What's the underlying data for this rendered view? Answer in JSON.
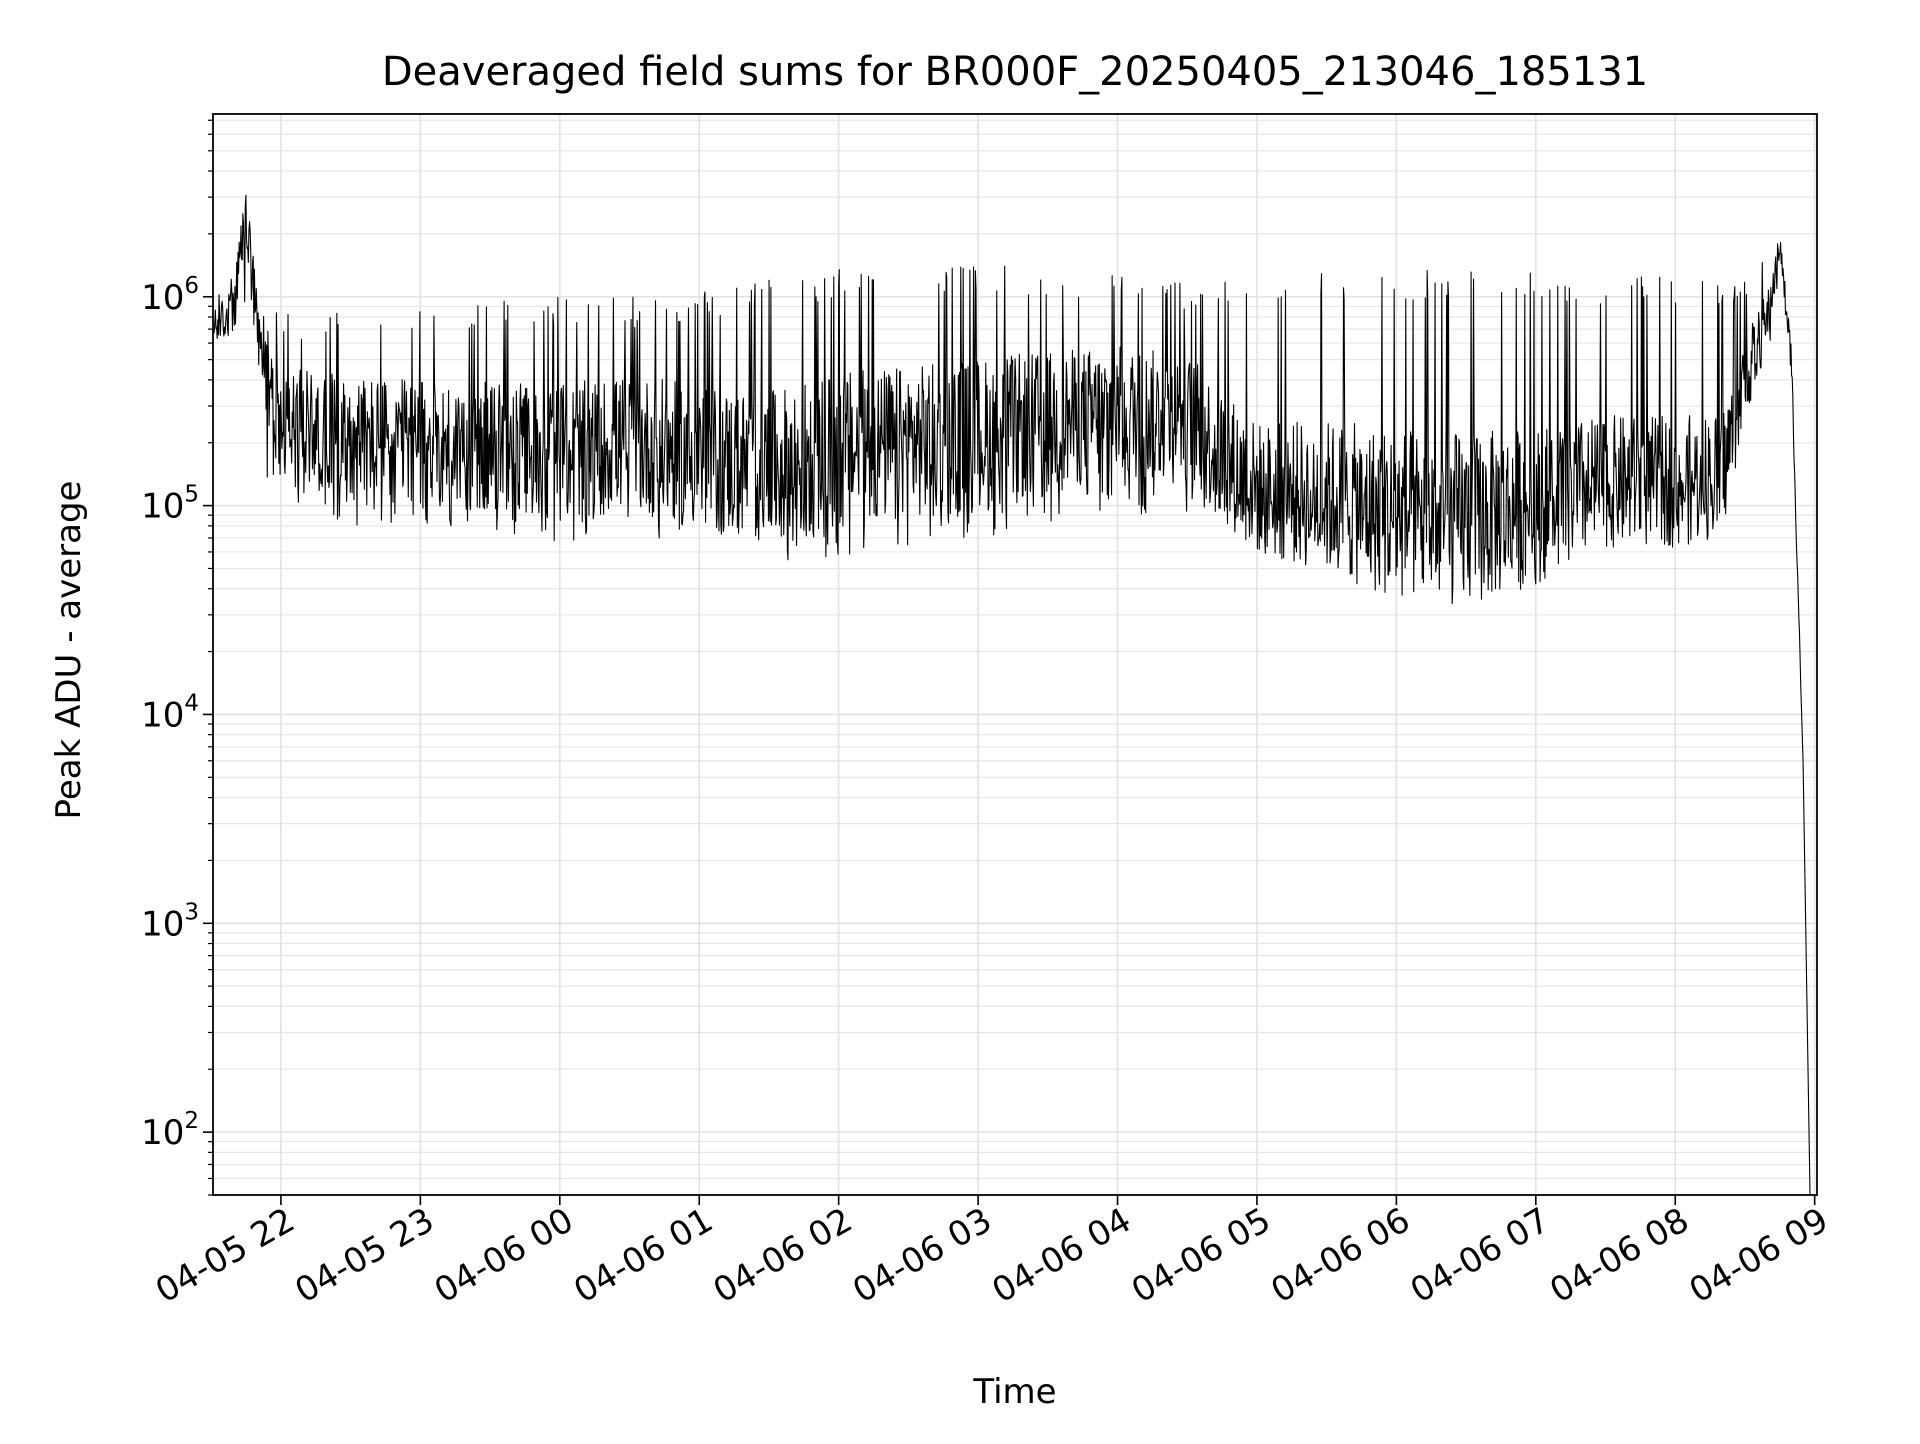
{
  "chart_data": {
    "type": "line",
    "title": "Deaveraged field sums for BR000F_20250405_213046_185131",
    "xlabel": "Time",
    "ylabel": "Peak ADU - average",
    "x_scale": "time",
    "y_scale": "log",
    "xlim": [
      "2025-04-05 21:30:46",
      "2025-04-06 09:01:00"
    ],
    "ylim": [
      50,
      7500000
    ],
    "grid": true,
    "legend": "none",
    "x_ticks": [
      "04-05 22",
      "04-05 23",
      "04-06 00",
      "04-06 01",
      "04-06 02",
      "04-06 03",
      "04-06 04",
      "04-06 05",
      "04-06 06",
      "04-06 07",
      "04-06 08",
      "04-06 09"
    ],
    "y_ticks": [
      {
        "base": "10",
        "exp": "2",
        "value": 100
      },
      {
        "base": "10",
        "exp": "3",
        "value": 1000
      },
      {
        "base": "10",
        "exp": "4",
        "value": 10000
      },
      {
        "base": "10",
        "exp": "5",
        "value": 100000
      },
      {
        "base": "10",
        "exp": "6",
        "value": 1000000
      }
    ],
    "line_color": "#000000",
    "series": [
      {
        "x": [
          "2025-04-05 21:31",
          "2025-04-05 21:40",
          "2025-04-05 21:45",
          "2025-04-05 21:50",
          "2025-04-05 21:55",
          "2025-04-05 22:00",
          "2025-04-05 22:30",
          "2025-04-05 23:00",
          "2025-04-05 23:30",
          "2025-04-06 00:00",
          "2025-04-06 00:30",
          "2025-04-06 01:00",
          "2025-04-06 01:30",
          "2025-04-06 02:00",
          "2025-04-06 02:30",
          "2025-04-06 03:00",
          "2025-04-06 03:30",
          "2025-04-06 04:00",
          "2025-04-06 04:30",
          "2025-04-06 05:00",
          "2025-04-06 05:30",
          "2025-04-06 06:00",
          "2025-04-06 06:30",
          "2025-04-06 07:00",
          "2025-04-06 07:30",
          "2025-04-06 08:00",
          "2025-04-06 08:20",
          "2025-04-06 08:30",
          "2025-04-06 08:40",
          "2025-04-06 08:45",
          "2025-04-06 08:50",
          "2025-04-06 08:55",
          "2025-04-06 08:58"
        ],
        "y": [
          700000,
          900000,
          2500000,
          600000,
          350000,
          250000,
          220000,
          200000,
          190000,
          180000,
          200000,
          170000,
          150000,
          180000,
          200000,
          220000,
          250000,
          280000,
          260000,
          120000,
          110000,
          90000,
          85000,
          100000,
          130000,
          130000,
          140000,
          400000,
          800000,
          1800000,
          500000,
          6000,
          50
        ],
        "low": [
          500000,
          500000,
          900000,
          250000,
          120000,
          90000,
          80000,
          75000,
          70000,
          65000,
          65000,
          60000,
          55000,
          55000,
          65000,
          70000,
          80000,
          90000,
          85000,
          90000,
          60000,
          42000,
          40000,
          55000,
          90000,
          95000,
          100000,
          250000,
          500000,
          1200000,
          400000,
          5000,
          50
        ],
        "high": [
          1000000,
          1300000,
          4000000,
          1200000,
          900000,
          850000,
          850000,
          900000,
          950000,
          1000000,
          1000000,
          1100000,
          1200000,
          1400000,
          1400000,
          1500000,
          1400000,
          1300000,
          1200000,
          1300000,
          1300000,
          1350000,
          1350000,
          1300000,
          1300000,
          1300000,
          1300000,
          1300000,
          1600000,
          1900000,
          800000,
          7000,
          50
        ]
      }
    ]
  }
}
